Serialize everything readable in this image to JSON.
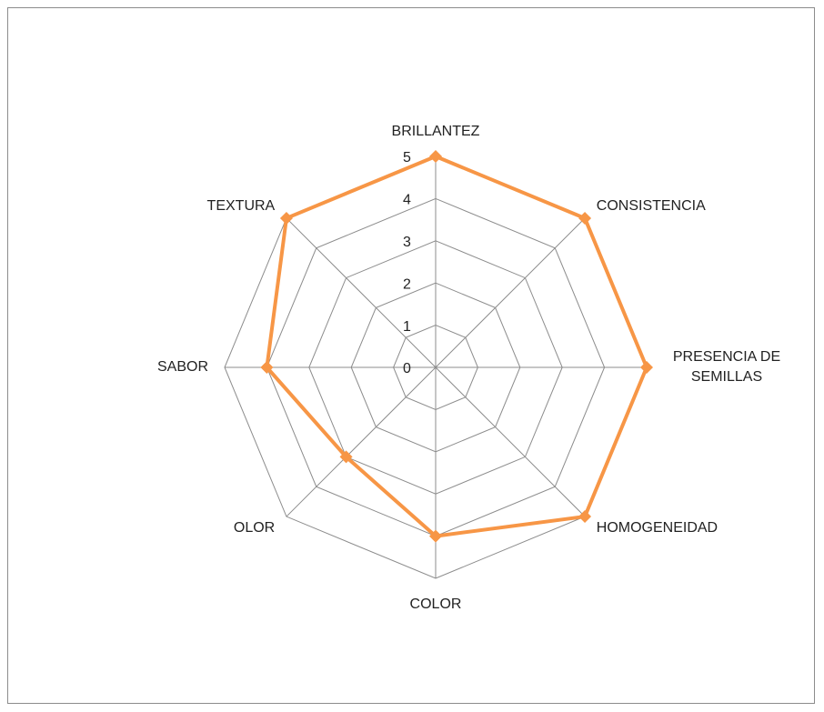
{
  "chart_data": {
    "type": "radar",
    "categories": [
      "BRILLANTEZ",
      "CONSISTENCIA",
      "PRESENCIA DE SEMILLAS",
      "HOMOGENEIDAD",
      "COLOR",
      "OLOR",
      "SABOR",
      "TEXTURA"
    ],
    "values": [
      5,
      5,
      5,
      5,
      4,
      3,
      4,
      5
    ],
    "color": "#f79646",
    "ylim": [
      0,
      5
    ],
    "yticks": [
      0,
      1,
      2,
      3,
      4,
      5
    ],
    "grid": true
  }
}
